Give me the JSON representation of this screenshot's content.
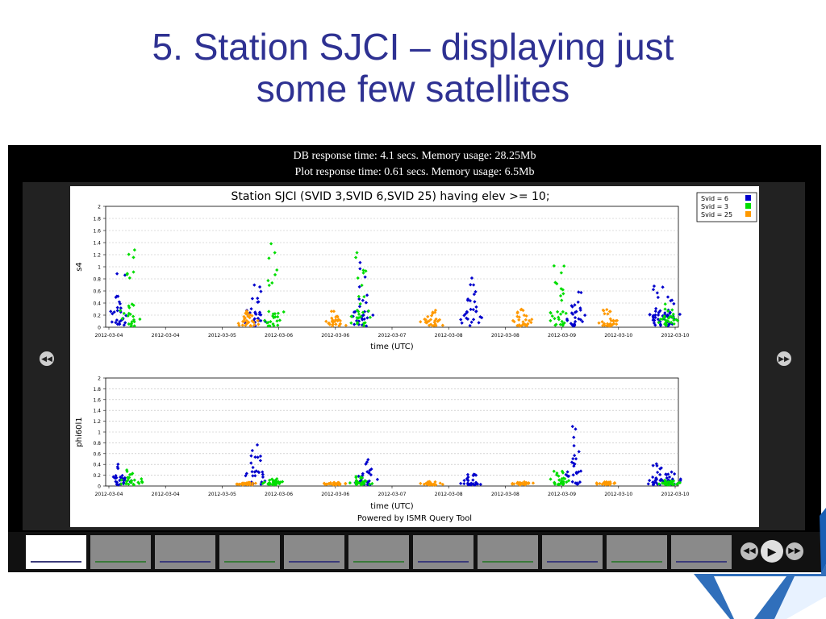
{
  "slide": {
    "title_line1": "5. Station SJCI – displaying just",
    "title_line2": "some few satellites"
  },
  "status": {
    "db_line": "DB response time: 4.1 secs. Memory usage: 28.25Mb",
    "plot_line": "Plot response time: 0.61 secs. Memory usage: 6.5Mb"
  },
  "icons": {
    "prev": "rewind-icon",
    "next": "fast-forward-icon",
    "play": "play-icon"
  },
  "footer": "Powered by ISMR Query Tool",
  "colors": {
    "title": "#2e3192",
    "svid6": "#0000cc",
    "svid3": "#00dd00",
    "svid25": "#ff9900"
  },
  "chart_data": {
    "type": "scatter",
    "title": "Station SJCI (SVID 3,SVID 6,SVID 25) having elev >= 10;",
    "legend": {
      "placement": "top-right",
      "entries": [
        "Svid = 6",
        "Svid = 3",
        "Svid = 25"
      ]
    },
    "x_ticks": [
      "2012-03-04",
      "2012-03-04",
      "2012-03-05",
      "2012-03-06",
      "2012-03-06",
      "2012-03-07",
      "2012-03-08",
      "2012-03-08",
      "2012-03-09",
      "2012-03-10",
      "2012-03-10"
    ],
    "xlabel": "time (UTC)",
    "panels": [
      {
        "ylabel": "s4",
        "ylim": [
          0,
          2
        ],
        "y_ticks": [
          "0",
          "0.2",
          "0.4",
          "0.6",
          "0.8",
          "1",
          "1.2",
          "1.4",
          "1.6",
          "1.8",
          "2"
        ],
        "grid": true,
        "series": [
          {
            "name": "Svid = 6",
            "color": "#0000cc",
            "peaks": [
              [
                0.02,
                0.95
              ],
              [
                0.26,
                0.75
              ],
              [
                0.45,
                1.4
              ],
              [
                0.64,
                0.85
              ],
              [
                0.97,
                0.8
              ],
              [
                0.99,
                0.6
              ],
              [
                0.825,
                0.75
              ]
            ]
          },
          {
            "name": "Svid = 3",
            "color": "#00dd00",
            "peaks": [
              [
                0.04,
                1.35
              ],
              [
                0.29,
                1.5
              ],
              [
                0.445,
                1.25
              ],
              [
                0.795,
                1.05
              ],
              [
                0.99,
                0.4
              ]
            ]
          },
          {
            "name": "Svid = 25",
            "color": "#ff9900",
            "peaks": [
              [
                0.245,
                0.3
              ],
              [
                0.4,
                0.3
              ],
              [
                0.57,
                0.3
              ],
              [
                0.73,
                0.3
              ],
              [
                0.88,
                0.3
              ]
            ]
          }
        ]
      },
      {
        "ylabel": "phi60l1",
        "ylim": [
          0,
          2
        ],
        "y_ticks": [
          "0",
          "0.2",
          "0.4",
          "0.6",
          "0.8",
          "1",
          "1.2",
          "1.4",
          "1.6",
          "1.8",
          "2"
        ],
        "grid": true,
        "series": [
          {
            "name": "Svid = 6",
            "color": "#0000cc",
            "peaks": [
              [
                0.02,
                0.42
              ],
              [
                0.26,
                0.8
              ],
              [
                0.455,
                0.5
              ],
              [
                0.64,
                0.22
              ],
              [
                0.97,
                0.42
              ],
              [
                0.99,
                0.3
              ],
              [
                0.825,
                1.12
              ]
            ]
          },
          {
            "name": "Svid = 3",
            "color": "#00dd00",
            "peaks": [
              [
                0.04,
                0.3
              ],
              [
                0.29,
                0.15
              ],
              [
                0.445,
                0.2
              ],
              [
                0.795,
                0.3
              ],
              [
                0.99,
                0.12
              ]
            ]
          },
          {
            "name": "Svid = 25",
            "color": "#ff9900",
            "peaks": [
              [
                0.245,
                0.08
              ],
              [
                0.4,
                0.08
              ],
              [
                0.57,
                0.08
              ],
              [
                0.73,
                0.08
              ],
              [
                0.88,
                0.08
              ]
            ]
          }
        ]
      }
    ]
  },
  "thumbnails": [
    {
      "active": true
    },
    {
      "active": false
    },
    {
      "active": false
    },
    {
      "active": false
    },
    {
      "active": false
    },
    {
      "active": false
    },
    {
      "active": false
    },
    {
      "active": false
    },
    {
      "active": false
    },
    {
      "active": false
    },
    {
      "active": false
    }
  ]
}
